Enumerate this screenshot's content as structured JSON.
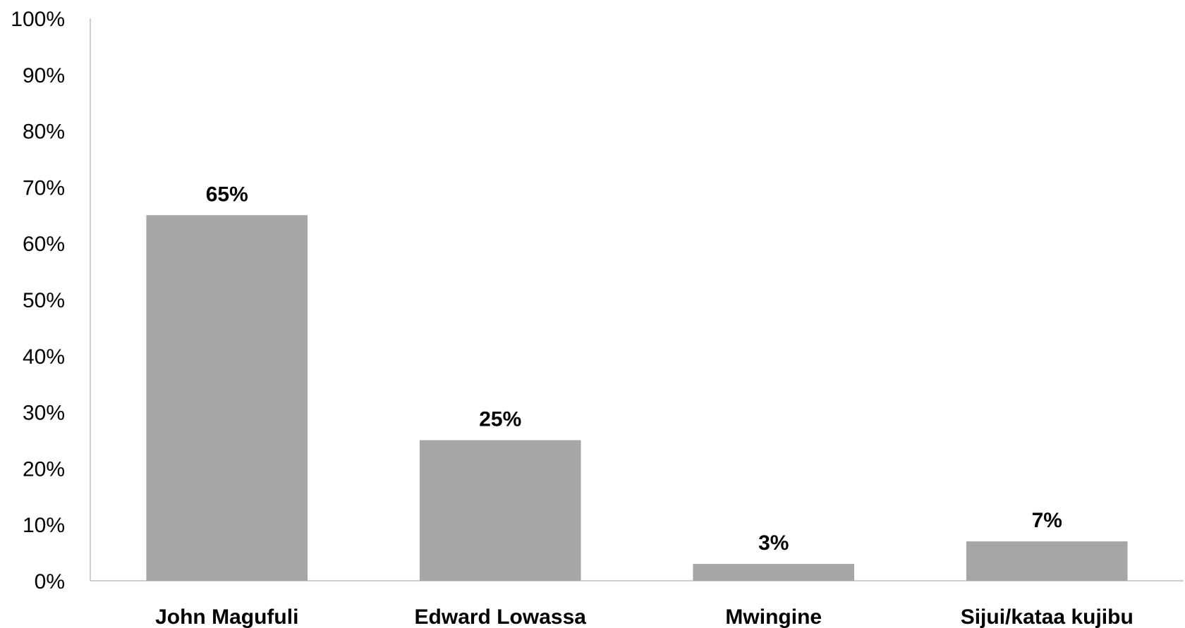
{
  "chart_data": {
    "type": "bar",
    "categories": [
      "John Magufuli",
      "Edward Lowassa",
      "Mwingine",
      "Sijui/kataa kujibu"
    ],
    "values": [
      65,
      25,
      3,
      7
    ],
    "data_labels": [
      "65%",
      "25%",
      "3%",
      "7%"
    ],
    "title": "",
    "xlabel": "",
    "ylabel": "",
    "ylim": [
      0,
      100
    ],
    "y_ticks": [
      "0%",
      "10%",
      "20%",
      "30%",
      "40%",
      "50%",
      "60%",
      "70%",
      "80%",
      "90%",
      "100%"
    ],
    "grid": false,
    "legend": "none",
    "bar_color": "#a6a6a6",
    "axis_color": "#bfbfbf"
  }
}
